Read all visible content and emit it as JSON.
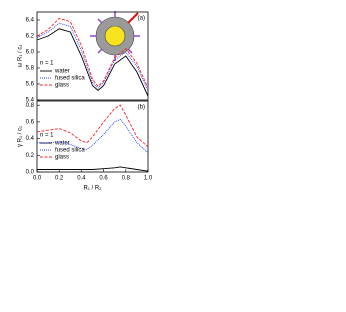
{
  "chart_data": [
    {
      "type": "line",
      "panel_label": "(a)",
      "ylabel": "ω R₁ / c₁",
      "annotation": "n = 1",
      "x": [
        0,
        0.1,
        0.2,
        0.3,
        0.4,
        0.5,
        0.55,
        0.6,
        0.7,
        0.8,
        0.9,
        1.0
      ],
      "series": [
        {
          "name": "water",
          "color": "#000000",
          "dash": "solid",
          "values": [
            6.15,
            6.2,
            6.29,
            6.25,
            5.95,
            5.58,
            5.52,
            5.58,
            5.85,
            5.95,
            5.75,
            5.45
          ]
        },
        {
          "name": "fused silica",
          "color": "#1f3fff",
          "dash": "dotted",
          "values": [
            6.18,
            6.25,
            6.36,
            6.32,
            6.02,
            5.62,
            5.55,
            5.62,
            5.9,
            6.0,
            5.82,
            5.52
          ]
        },
        {
          "name": "glass",
          "color": "#ff2020",
          "dash": "dashed",
          "values": [
            6.2,
            6.28,
            6.42,
            6.38,
            6.08,
            5.66,
            5.57,
            5.64,
            5.93,
            6.04,
            5.86,
            5.55
          ]
        }
      ],
      "xlim": [
        0,
        1
      ],
      "ylim": [
        5.4,
        6.5
      ],
      "yticks": [
        5.4,
        5.6,
        5.8,
        {
          "value": 6,
          "label": "6.0"
        },
        6.2,
        6.4
      ],
      "legend": "left"
    },
    {
      "type": "line",
      "panel_label": "(b)",
      "ylabel": "γ R₁ / c₁",
      "xlabel": "R₁ / R₂",
      "annotation": "n = 1",
      "x": [
        0,
        0.1,
        0.2,
        0.3,
        0.4,
        0.45,
        0.5,
        0.6,
        0.7,
        0.75,
        0.8,
        0.9,
        1.0
      ],
      "series": [
        {
          "name": "water",
          "color": "#000000",
          "dash": "solid",
          "values": [
            0.03,
            0.03,
            0.03,
            0.03,
            0.03,
            0.03,
            0.03,
            0.04,
            0.05,
            0.06,
            0.05,
            0.03,
            0.01
          ]
        },
        {
          "name": "fused silica",
          "color": "#1f3fff",
          "dash": "dotted",
          "values": [
            0.35,
            0.35,
            0.36,
            0.33,
            0.28,
            0.27,
            0.32,
            0.45,
            0.6,
            0.63,
            0.55,
            0.35,
            0.23
          ]
        },
        {
          "name": "glass",
          "color": "#ff2020",
          "dash": "dashed",
          "values": [
            0.48,
            0.5,
            0.52,
            0.47,
            0.37,
            0.35,
            0.42,
            0.6,
            0.76,
            0.8,
            0.68,
            0.42,
            0.3
          ]
        }
      ],
      "xlim": [
        0,
        1
      ],
      "ylim": [
        0,
        0.85
      ],
      "xticks": [
        {
          "value": 0,
          "label": "0.0"
        },
        0.2,
        0.4,
        0.6,
        0.8,
        {
          "value": 1,
          "label": "1.0"
        }
      ],
      "yticks": [
        {
          "value": 0,
          "label": "0.0"
        },
        0.2,
        0.4,
        0.6,
        0.8
      ],
      "legend": "left"
    }
  ]
}
